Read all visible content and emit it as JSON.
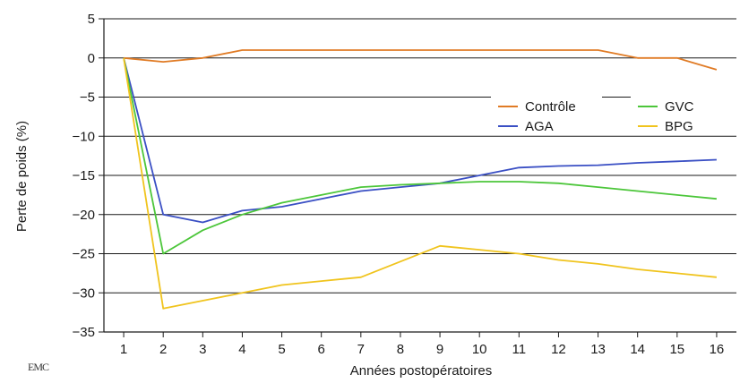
{
  "logo_text": "EMC",
  "chart_data": {
    "type": "line",
    "title": "",
    "xlabel": "Années postopératoires",
    "ylabel": "Perte de poids (%)",
    "x": [
      1,
      2,
      3,
      4,
      5,
      6,
      7,
      8,
      9,
      10,
      11,
      12,
      13,
      14,
      15,
      16
    ],
    "xlim": [
      0.5,
      16.5
    ],
    "ylim": [
      -35,
      5
    ],
    "yticks": [
      5,
      0,
      -5,
      -10,
      -15,
      -20,
      -25,
      -30,
      -35
    ],
    "grid": "horizontal",
    "legend_position": "right",
    "series": [
      {
        "name": "Contrôle",
        "color": "#e07b25",
        "values": [
          0,
          -0.5,
          0,
          1,
          1,
          1,
          1,
          1,
          1,
          1,
          1,
          1,
          1,
          0,
          0,
          -1.5
        ]
      },
      {
        "name": "AGA",
        "color": "#3a4fc4",
        "values": [
          0,
          -20,
          -21,
          -19.5,
          -19,
          -18,
          -17,
          -16.5,
          -16,
          -15,
          -14,
          -13.8,
          -13.7,
          -13.4,
          -13.2,
          -13
        ]
      },
      {
        "name": "GVC",
        "color": "#4cc63a",
        "values": [
          0,
          -25,
          -22,
          -20,
          -18.5,
          -17.5,
          -16.5,
          -16.2,
          -16,
          -15.8,
          -15.8,
          -16,
          -16.5,
          -17,
          -17.5,
          -18
        ]
      },
      {
        "name": "BPG",
        "color": "#f0c41e",
        "values": [
          0,
          -32,
          -31,
          -30,
          -29,
          -28.5,
          -28,
          -26,
          -24,
          -24.5,
          -25,
          -25.8,
          -26.3,
          -27,
          -27.5,
          -28
        ]
      }
    ]
  }
}
